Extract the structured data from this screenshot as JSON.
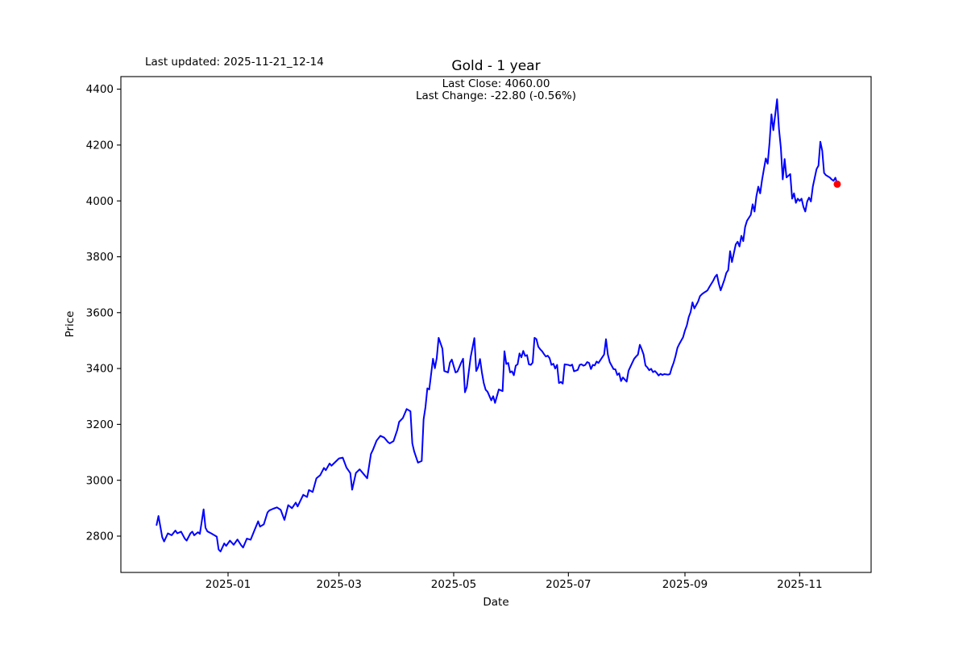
{
  "header": {
    "last_updated": "Last updated: 2025-11-21_12-14",
    "title": "Gold - 1 year"
  },
  "annotation": {
    "last_close": "Last Close: 4060.00",
    "last_change": "Last Change: -22.80 (-0.56%)"
  },
  "chart_data": {
    "type": "line",
    "title": "Gold - 1 year",
    "xlabel": "Date",
    "ylabel": "Price",
    "grid": false,
    "legend": null,
    "x_tick_labels": [
      "2025-01",
      "2025-03",
      "2025-05",
      "2025-07",
      "2025-09",
      "2025-11"
    ],
    "y_ticks": [
      2800,
      3000,
      3200,
      3400,
      3600,
      3800,
      4000,
      4200,
      4400
    ],
    "xlim": [
      "2024-11-05",
      "2025-12-09"
    ],
    "ylim": [
      2670,
      4445
    ],
    "line_color": "#0000ff",
    "marker_color": "#ff0000",
    "series_name": "Gold price",
    "last_close": 4060.0,
    "last_change": -22.8,
    "last_change_pct": -0.56,
    "points": [
      [
        "2024-11-24",
        2840
      ],
      [
        "2024-11-25",
        2872
      ],
      [
        "2024-11-27",
        2796
      ],
      [
        "2024-11-28",
        2781
      ],
      [
        "2024-11-30",
        2810
      ],
      [
        "2024-12-02",
        2803
      ],
      [
        "2024-12-04",
        2820
      ],
      [
        "2024-12-05",
        2810
      ],
      [
        "2024-12-07",
        2816
      ],
      [
        "2024-12-09",
        2791
      ],
      [
        "2024-12-10",
        2784
      ],
      [
        "2024-12-12",
        2810
      ],
      [
        "2024-12-13",
        2816
      ],
      [
        "2024-12-14",
        2803
      ],
      [
        "2024-12-16",
        2814
      ],
      [
        "2024-12-17",
        2808
      ],
      [
        "2024-12-19",
        2896
      ],
      [
        "2024-12-20",
        2830
      ],
      [
        "2024-12-21",
        2817
      ],
      [
        "2024-12-23",
        2810
      ],
      [
        "2024-12-26",
        2798
      ],
      [
        "2024-12-27",
        2752
      ],
      [
        "2024-12-28",
        2745
      ],
      [
        "2024-12-30",
        2774
      ],
      [
        "2024-12-31",
        2765
      ],
      [
        "2025-01-02",
        2784
      ],
      [
        "2025-01-04",
        2769
      ],
      [
        "2025-01-06",
        2788
      ],
      [
        "2025-01-08",
        2767
      ],
      [
        "2025-01-09",
        2759
      ],
      [
        "2025-01-11",
        2791
      ],
      [
        "2025-01-13",
        2787
      ],
      [
        "2025-01-15",
        2820
      ],
      [
        "2025-01-17",
        2853
      ],
      [
        "2025-01-18",
        2834
      ],
      [
        "2025-01-20",
        2842
      ],
      [
        "2025-01-22",
        2885
      ],
      [
        "2025-01-23",
        2892
      ],
      [
        "2025-01-25",
        2898
      ],
      [
        "2025-01-27",
        2903
      ],
      [
        "2025-01-29",
        2894
      ],
      [
        "2025-01-31",
        2858
      ],
      [
        "2025-02-02",
        2911
      ],
      [
        "2025-02-04",
        2900
      ],
      [
        "2025-02-06",
        2920
      ],
      [
        "2025-02-07",
        2906
      ],
      [
        "2025-02-10",
        2948
      ],
      [
        "2025-02-12",
        2940
      ],
      [
        "2025-02-13",
        2965
      ],
      [
        "2025-02-15",
        2958
      ],
      [
        "2025-02-17",
        3007
      ],
      [
        "2025-02-19",
        3018
      ],
      [
        "2025-02-21",
        3044
      ],
      [
        "2025-02-22",
        3036
      ],
      [
        "2025-02-24",
        3060
      ],
      [
        "2025-02-25",
        3052
      ],
      [
        "2025-02-27",
        3065
      ],
      [
        "2025-03-01",
        3078
      ],
      [
        "2025-03-03",
        3081
      ],
      [
        "2025-03-05",
        3045
      ],
      [
        "2025-03-07",
        3026
      ],
      [
        "2025-03-08",
        2966
      ],
      [
        "2025-03-10",
        3026
      ],
      [
        "2025-03-12",
        3039
      ],
      [
        "2025-03-14",
        3023
      ],
      [
        "2025-03-16",
        3007
      ],
      [
        "2025-03-18",
        3094
      ],
      [
        "2025-03-19",
        3108
      ],
      [
        "2025-03-21",
        3142
      ],
      [
        "2025-03-23",
        3159
      ],
      [
        "2025-03-25",
        3153
      ],
      [
        "2025-03-27",
        3137
      ],
      [
        "2025-03-28",
        3132
      ],
      [
        "2025-03-30",
        3140
      ],
      [
        "2025-04-01",
        3180
      ],
      [
        "2025-04-02",
        3209
      ],
      [
        "2025-04-04",
        3223
      ],
      [
        "2025-04-06",
        3255
      ],
      [
        "2025-04-08",
        3247
      ],
      [
        "2025-04-09",
        3132
      ],
      [
        "2025-04-10",
        3103
      ],
      [
        "2025-04-12",
        3063
      ],
      [
        "2025-04-14",
        3069
      ],
      [
        "2025-04-15",
        3218
      ],
      [
        "2025-04-16",
        3262
      ],
      [
        "2025-04-17",
        3329
      ],
      [
        "2025-04-18",
        3325
      ],
      [
        "2025-04-20",
        3435
      ],
      [
        "2025-04-21",
        3401
      ],
      [
        "2025-04-22",
        3438
      ],
      [
        "2025-04-23",
        3510
      ],
      [
        "2025-04-25",
        3471
      ],
      [
        "2025-04-26",
        3391
      ],
      [
        "2025-04-28",
        3386
      ],
      [
        "2025-04-29",
        3421
      ],
      [
        "2025-04-30",
        3432
      ],
      [
        "2025-05-02",
        3386
      ],
      [
        "2025-05-03",
        3389
      ],
      [
        "2025-05-05",
        3421
      ],
      [
        "2025-05-06",
        3435
      ],
      [
        "2025-05-07",
        3315
      ],
      [
        "2025-05-08",
        3334
      ],
      [
        "2025-05-10",
        3440
      ],
      [
        "2025-05-12",
        3509
      ],
      [
        "2025-05-13",
        3391
      ],
      [
        "2025-05-14",
        3405
      ],
      [
        "2025-05-15",
        3434
      ],
      [
        "2025-05-16",
        3386
      ],
      [
        "2025-05-17",
        3348
      ],
      [
        "2025-05-18",
        3324
      ],
      [
        "2025-05-19",
        3317
      ],
      [
        "2025-05-21",
        3286
      ],
      [
        "2025-05-22",
        3301
      ],
      [
        "2025-05-23",
        3277
      ],
      [
        "2025-05-25",
        3325
      ],
      [
        "2025-05-27",
        3319
      ],
      [
        "2025-05-28",
        3462
      ],
      [
        "2025-05-29",
        3416
      ],
      [
        "2025-05-30",
        3420
      ],
      [
        "2025-05-31",
        3386
      ],
      [
        "2025-06-01",
        3390
      ],
      [
        "2025-06-02",
        3376
      ],
      [
        "2025-06-03",
        3410
      ],
      [
        "2025-06-04",
        3415
      ],
      [
        "2025-06-05",
        3454
      ],
      [
        "2025-06-06",
        3440
      ],
      [
        "2025-06-07",
        3463
      ],
      [
        "2025-06-08",
        3445
      ],
      [
        "2025-06-09",
        3448
      ],
      [
        "2025-06-10",
        3415
      ],
      [
        "2025-06-11",
        3413
      ],
      [
        "2025-06-12",
        3421
      ],
      [
        "2025-06-13",
        3510
      ],
      [
        "2025-06-14",
        3505
      ],
      [
        "2025-06-15",
        3478
      ],
      [
        "2025-06-16",
        3469
      ],
      [
        "2025-06-17",
        3462
      ],
      [
        "2025-06-18",
        3452
      ],
      [
        "2025-06-19",
        3443
      ],
      [
        "2025-06-20",
        3446
      ],
      [
        "2025-06-21",
        3437
      ],
      [
        "2025-06-22",
        3413
      ],
      [
        "2025-06-23",
        3417
      ],
      [
        "2025-06-24",
        3400
      ],
      [
        "2025-06-25",
        3413
      ],
      [
        "2025-06-26",
        3348
      ],
      [
        "2025-06-27",
        3352
      ],
      [
        "2025-06-28",
        3346
      ],
      [
        "2025-06-29",
        3415
      ],
      [
        "2025-07-01",
        3413
      ],
      [
        "2025-07-02",
        3410
      ],
      [
        "2025-07-03",
        3414
      ],
      [
        "2025-07-04",
        3390
      ],
      [
        "2025-07-06",
        3395
      ],
      [
        "2025-07-07",
        3413
      ],
      [
        "2025-07-08",
        3415
      ],
      [
        "2025-07-09",
        3410
      ],
      [
        "2025-07-10",
        3413
      ],
      [
        "2025-07-11",
        3423
      ],
      [
        "2025-07-12",
        3420
      ],
      [
        "2025-07-13",
        3398
      ],
      [
        "2025-07-14",
        3413
      ],
      [
        "2025-07-15",
        3411
      ],
      [
        "2025-07-16",
        3425
      ],
      [
        "2025-07-17",
        3420
      ],
      [
        "2025-07-19",
        3440
      ],
      [
        "2025-07-20",
        3450
      ],
      [
        "2025-07-21",
        3505
      ],
      [
        "2025-07-22",
        3450
      ],
      [
        "2025-07-23",
        3423
      ],
      [
        "2025-07-25",
        3398
      ],
      [
        "2025-07-26",
        3397
      ],
      [
        "2025-07-27",
        3377
      ],
      [
        "2025-07-28",
        3383
      ],
      [
        "2025-07-29",
        3355
      ],
      [
        "2025-07-30",
        3368
      ],
      [
        "2025-08-01",
        3353
      ],
      [
        "2025-08-02",
        3392
      ],
      [
        "2025-08-04",
        3421
      ],
      [
        "2025-08-05",
        3435
      ],
      [
        "2025-08-06",
        3443
      ],
      [
        "2025-08-07",
        3450
      ],
      [
        "2025-08-08",
        3485
      ],
      [
        "2025-08-09",
        3469
      ],
      [
        "2025-08-10",
        3450
      ],
      [
        "2025-08-11",
        3411
      ],
      [
        "2025-08-12",
        3404
      ],
      [
        "2025-08-13",
        3394
      ],
      [
        "2025-08-14",
        3399
      ],
      [
        "2025-08-15",
        3387
      ],
      [
        "2025-08-16",
        3391
      ],
      [
        "2025-08-17",
        3384
      ],
      [
        "2025-08-18",
        3375
      ],
      [
        "2025-08-19",
        3381
      ],
      [
        "2025-08-20",
        3377
      ],
      [
        "2025-08-21",
        3380
      ],
      [
        "2025-08-23",
        3378
      ],
      [
        "2025-08-24",
        3380
      ],
      [
        "2025-08-25",
        3403
      ],
      [
        "2025-08-26",
        3421
      ],
      [
        "2025-08-27",
        3445
      ],
      [
        "2025-08-28",
        3474
      ],
      [
        "2025-08-29",
        3488
      ],
      [
        "2025-08-31",
        3512
      ],
      [
        "2025-09-01",
        3536
      ],
      [
        "2025-09-02",
        3554
      ],
      [
        "2025-09-03",
        3584
      ],
      [
        "2025-09-04",
        3602
      ],
      [
        "2025-09-05",
        3637
      ],
      [
        "2025-09-06",
        3615
      ],
      [
        "2025-09-08",
        3640
      ],
      [
        "2025-09-09",
        3659
      ],
      [
        "2025-09-10",
        3666
      ],
      [
        "2025-09-11",
        3671
      ],
      [
        "2025-09-12",
        3675
      ],
      [
        "2025-09-13",
        3680
      ],
      [
        "2025-09-14",
        3692
      ],
      [
        "2025-09-16",
        3714
      ],
      [
        "2025-09-17",
        3728
      ],
      [
        "2025-09-18",
        3736
      ],
      [
        "2025-09-19",
        3704
      ],
      [
        "2025-09-20",
        3680
      ],
      [
        "2025-09-22",
        3718
      ],
      [
        "2025-09-23",
        3742
      ],
      [
        "2025-09-24",
        3752
      ],
      [
        "2025-09-25",
        3820
      ],
      [
        "2025-09-26",
        3781
      ],
      [
        "2025-09-28",
        3844
      ],
      [
        "2025-09-29",
        3854
      ],
      [
        "2025-09-30",
        3837
      ],
      [
        "2025-10-01",
        3875
      ],
      [
        "2025-10-02",
        3856
      ],
      [
        "2025-10-03",
        3907
      ],
      [
        "2025-10-04",
        3929
      ],
      [
        "2025-10-06",
        3950
      ],
      [
        "2025-10-07",
        3988
      ],
      [
        "2025-10-08",
        3962
      ],
      [
        "2025-10-09",
        4017
      ],
      [
        "2025-10-10",
        4051
      ],
      [
        "2025-10-11",
        4027
      ],
      [
        "2025-10-12",
        4075
      ],
      [
        "2025-10-13",
        4114
      ],
      [
        "2025-10-14",
        4152
      ],
      [
        "2025-10-15",
        4133
      ],
      [
        "2025-10-16",
        4210
      ],
      [
        "2025-10-17",
        4310
      ],
      [
        "2025-10-18",
        4253
      ],
      [
        "2025-10-20",
        4364
      ],
      [
        "2025-10-21",
        4258
      ],
      [
        "2025-10-22",
        4190
      ],
      [
        "2025-10-23",
        4077
      ],
      [
        "2025-10-24",
        4150
      ],
      [
        "2025-10-25",
        4084
      ],
      [
        "2025-10-27",
        4096
      ],
      [
        "2025-10-28",
        4008
      ],
      [
        "2025-10-29",
        4027
      ],
      [
        "2025-10-30",
        3993
      ],
      [
        "2025-10-31",
        4008
      ],
      [
        "2025-11-01",
        4000
      ],
      [
        "2025-11-02",
        4008
      ],
      [
        "2025-11-03",
        3979
      ],
      [
        "2025-11-04",
        3962
      ],
      [
        "2025-11-05",
        3998
      ],
      [
        "2025-11-06",
        4012
      ],
      [
        "2025-11-07",
        3998
      ],
      [
        "2025-11-08",
        4051
      ],
      [
        "2025-11-10",
        4114
      ],
      [
        "2025-11-11",
        4126
      ],
      [
        "2025-11-12",
        4212
      ],
      [
        "2025-11-13",
        4180
      ],
      [
        "2025-11-14",
        4100
      ],
      [
        "2025-11-15",
        4092
      ],
      [
        "2025-11-17",
        4084
      ],
      [
        "2025-11-18",
        4077
      ],
      [
        "2025-11-19",
        4072
      ],
      [
        "2025-11-20",
        4083
      ],
      [
        "2025-11-21",
        4060
      ]
    ]
  }
}
